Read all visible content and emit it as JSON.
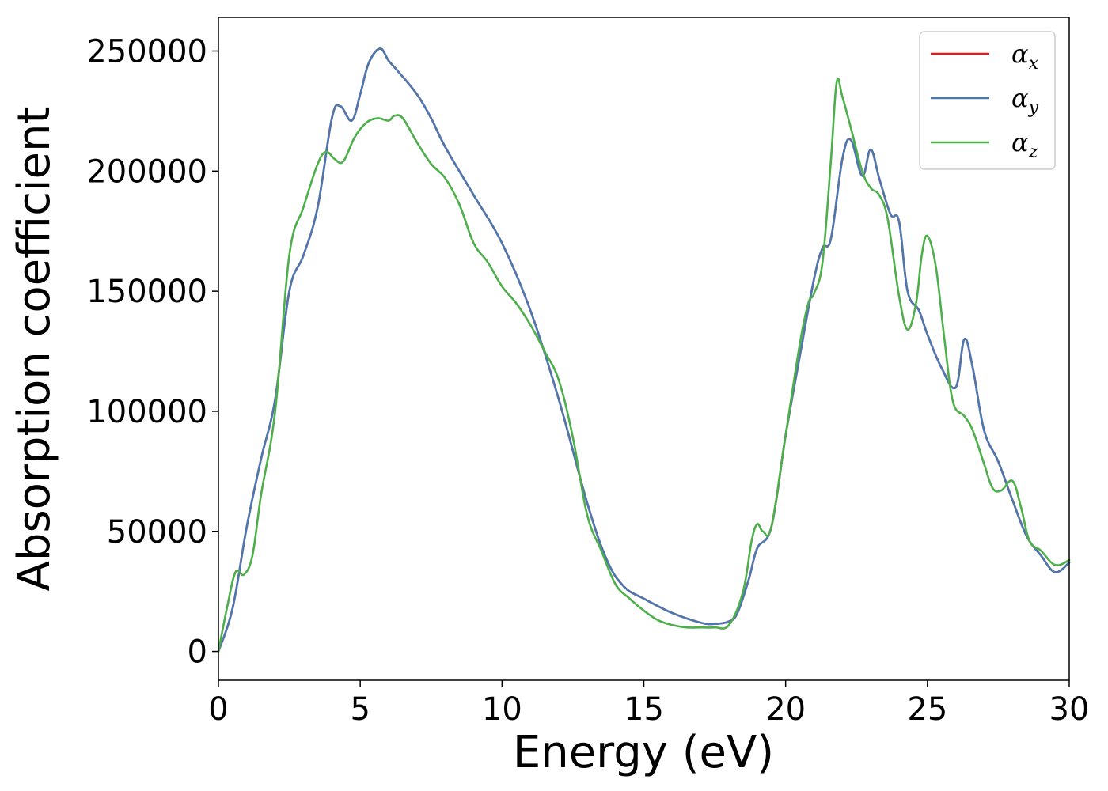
{
  "chart_data": {
    "type": "line",
    "xlabel": "Energy (eV)",
    "ylabel": "Absorption coefficient",
    "xlim": [
      0,
      30
    ],
    "ylim": [
      -12000,
      264000
    ],
    "xticks": [
      0,
      5,
      10,
      15,
      20,
      25,
      30
    ],
    "yticks": [
      0,
      50000,
      100000,
      150000,
      200000,
      250000
    ],
    "grid": false,
    "legend_position": "top-right",
    "series": [
      {
        "name": "x",
        "legend_symbol": "α",
        "legend_subscript": "x",
        "color": "#e41a1c",
        "x": [
          0,
          0.5,
          1,
          1.5,
          2,
          2.5,
          3,
          3.5,
          4,
          4.3,
          4.7,
          5,
          5.3,
          5.7,
          6,
          6.3,
          7,
          7.5,
          8,
          9,
          10,
          11,
          12,
          13,
          13.7,
          14.3,
          15,
          16,
          17,
          17.5,
          18,
          18.3,
          18.7,
          19,
          19.5,
          20,
          20.5,
          21,
          21.3,
          21.6,
          22,
          22.3,
          22.7,
          23,
          23.3,
          23.7,
          24,
          24.3,
          24.7,
          25,
          25.5,
          26,
          26.3,
          26.6,
          27,
          27.5,
          28,
          28.5,
          29,
          29.5,
          30
        ],
        "values": [
          0,
          18000,
          52000,
          80000,
          105000,
          150000,
          165000,
          185000,
          222000,
          227000,
          221000,
          232000,
          245000,
          251000,
          246000,
          242000,
          232000,
          222000,
          210000,
          190000,
          170000,
          142000,
          105000,
          62000,
          38000,
          27000,
          22000,
          16000,
          12000,
          11500,
          12500,
          16000,
          30000,
          43000,
          52000,
          90000,
          123000,
          155000,
          168000,
          172000,
          205000,
          213000,
          198000,
          209000,
          197000,
          182000,
          179000,
          150000,
          142000,
          132000,
          118000,
          110000,
          130000,
          118000,
          92000,
          79000,
          63000,
          48000,
          40000,
          33000,
          37000
        ]
      },
      {
        "name": "y",
        "legend_symbol": "α",
        "legend_subscript": "y",
        "color": "#4a78b0",
        "x": [
          0,
          0.5,
          1,
          1.5,
          2,
          2.5,
          3,
          3.5,
          4,
          4.3,
          4.7,
          5,
          5.3,
          5.7,
          6,
          6.3,
          7,
          7.5,
          8,
          9,
          10,
          11,
          12,
          13,
          13.7,
          14.3,
          15,
          16,
          17,
          17.5,
          18,
          18.3,
          18.7,
          19,
          19.5,
          20,
          20.5,
          21,
          21.3,
          21.6,
          22,
          22.3,
          22.7,
          23,
          23.3,
          23.7,
          24,
          24.3,
          24.7,
          25,
          25.5,
          26,
          26.3,
          26.6,
          27,
          27.5,
          28,
          28.5,
          29,
          29.5,
          30
        ],
        "values": [
          0,
          18000,
          52000,
          80000,
          105000,
          150000,
          165000,
          185000,
          222000,
          227000,
          221000,
          232000,
          245000,
          251000,
          246000,
          242000,
          232000,
          222000,
          210000,
          190000,
          170000,
          142000,
          105000,
          62000,
          38000,
          27000,
          22000,
          16000,
          12000,
          11500,
          12500,
          16000,
          30000,
          43000,
          52000,
          90000,
          123000,
          155000,
          168000,
          172000,
          205000,
          213000,
          198000,
          209000,
          197000,
          182000,
          179000,
          150000,
          142000,
          132000,
          118000,
          110000,
          130000,
          118000,
          92000,
          79000,
          63000,
          48000,
          40000,
          33000,
          37000
        ]
      },
      {
        "name": "z",
        "legend_symbol": "α",
        "legend_subscript": "z",
        "color": "#4daf4a",
        "x": [
          0,
          0.3,
          0.6,
          0.9,
          1.2,
          1.5,
          2,
          2.5,
          3,
          3.5,
          3.8,
          4.1,
          4.4,
          4.8,
          5.2,
          5.6,
          6,
          6.2,
          6.5,
          7,
          7.5,
          8,
          8.5,
          9,
          9.5,
          10,
          10.5,
          11,
          11.5,
          12,
          12.5,
          13,
          13.5,
          14,
          14.5,
          15,
          15.5,
          16,
          16.5,
          17,
          17.5,
          18,
          18.5,
          18.8,
          19,
          19.2,
          19.5,
          20,
          20.5,
          20.8,
          21,
          21.3,
          21.6,
          21.8,
          22,
          22.3,
          22.7,
          23,
          23.3,
          23.6,
          24,
          24.3,
          24.6,
          24.8,
          25,
          25.3,
          25.6,
          25.9,
          26.3,
          26.6,
          27,
          27.3,
          27.6,
          28,
          28.3,
          28.6,
          29,
          29.5,
          30
        ],
        "values": [
          0,
          18000,
          33000,
          32000,
          40000,
          65000,
          100000,
          165000,
          185000,
          203000,
          208000,
          205000,
          204000,
          214000,
          220000,
          222000,
          221000,
          223000,
          222000,
          212000,
          203000,
          197000,
          186000,
          170000,
          162000,
          152000,
          145000,
          136000,
          125000,
          113000,
          89000,
          57000,
          42000,
          28000,
          22000,
          17000,
          13000,
          11000,
          10000,
          10000,
          10000,
          11000,
          25000,
          46000,
          53000,
          50000,
          52000,
          90000,
          128000,
          145000,
          149000,
          162000,
          205000,
          237000,
          231000,
          218000,
          200000,
          193000,
          190000,
          180000,
          148000,
          134000,
          145000,
          165000,
          173000,
          160000,
          130000,
          104000,
          98000,
          92000,
          78000,
          68000,
          67000,
          71000,
          60000,
          46000,
          42000,
          36000,
          38000
        ]
      }
    ]
  }
}
